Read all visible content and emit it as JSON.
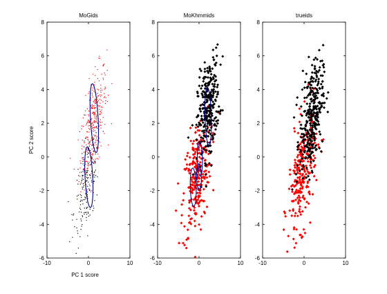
{
  "colors": {
    "class_a": "#ff0000",
    "class_b": "#000000",
    "ellipse": "#00008b",
    "axes": "#000000"
  },
  "chart_data": [
    {
      "type": "scatter",
      "title": "MoGids",
      "xlabel": "PC 1 score",
      "ylabel": "PC 2 score",
      "xlim": [
        -10,
        10
      ],
      "ylim": [
        -6,
        8
      ],
      "xticks": [
        "-10",
        "0",
        "10"
      ],
      "yticks": [
        "-6",
        "-4",
        "-2",
        "0",
        "2",
        "4",
        "6",
        "8"
      ],
      "marker": "dot",
      "series": [
        {
          "color": "#ff0000",
          "cluster": {
            "mean": [
              1.2,
              1.9
            ],
            "sd": [
              1.6,
              1.7
            ],
            "rho": 0.6,
            "n": 330
          }
        },
        {
          "color": "#000000",
          "cluster": {
            "mean": [
              -0.3,
              -1.5
            ],
            "sd": [
              1.6,
              1.6
            ],
            "rho": 0.55,
            "n": 200
          }
        }
      ],
      "ellipses": [
        {
          "center": [
            1.4,
            2.3
          ],
          "rx": 0.9,
          "ry": 2.1,
          "angle": 15
        },
        {
          "center": [
            0.1,
            -1.2
          ],
          "rx": 0.9,
          "ry": 1.85,
          "angle": 15
        }
      ]
    },
    {
      "type": "scatter",
      "title": "MoKhmmids",
      "xlabel": "",
      "ylabel": "",
      "xlim": [
        -10,
        10
      ],
      "ylim": [
        -6,
        8
      ],
      "xticks": [
        "-10",
        "0",
        "10"
      ],
      "yticks": [
        "-6",
        "-4",
        "-2",
        "0",
        "2",
        "4",
        "6",
        "8"
      ],
      "marker": "diamond",
      "series": [
        {
          "color": "#ff0000",
          "cluster": {
            "mean": [
              -0.6,
              -1.2
            ],
            "sd": [
              1.7,
              1.8
            ],
            "rho": 0.45,
            "n": 260
          }
        },
        {
          "color": "#000000",
          "cluster": {
            "mean": [
              2.3,
              2.9
            ],
            "sd": [
              1.3,
              1.5
            ],
            "rho": 0.35,
            "n": 300
          }
        }
      ],
      "ellipses": [
        {
          "center": [
            2.2,
            2.4
          ],
          "rx": 0.75,
          "ry": 1.75,
          "angle": 8
        },
        {
          "center": [
            0.2,
            -0.1
          ],
          "rx": 0.6,
          "ry": 1.05,
          "angle": 8
        },
        {
          "center": [
            -1.4,
            -1.8
          ],
          "rx": 0.7,
          "ry": 1.15,
          "angle": 10
        },
        {
          "center": [
            0.0,
            -1.2
          ],
          "rx": 0.55,
          "ry": 0.8,
          "angle": 10
        }
      ]
    },
    {
      "type": "scatter",
      "title": "trueids",
      "xlabel": "",
      "ylabel": "",
      "xlim": [
        -10,
        10
      ],
      "ylim": [
        -6,
        8
      ],
      "xticks": [
        "-10",
        "0",
        "10"
      ],
      "yticks": [
        "-6",
        "-4",
        "-2",
        "0",
        "2",
        "4",
        "6",
        "8"
      ],
      "marker": "diamond",
      "series": [
        {
          "color": "#ff0000",
          "cluster": {
            "mean": [
              -0.4,
              -1.0
            ],
            "sd": [
              1.7,
              1.8
            ],
            "rho": 0.5,
            "n": 260
          }
        },
        {
          "color": "#000000",
          "cluster": {
            "mean": [
              1.8,
              2.4
            ],
            "sd": [
              1.4,
              1.6
            ],
            "rho": 0.4,
            "n": 330
          }
        }
      ],
      "ellipses": []
    }
  ]
}
